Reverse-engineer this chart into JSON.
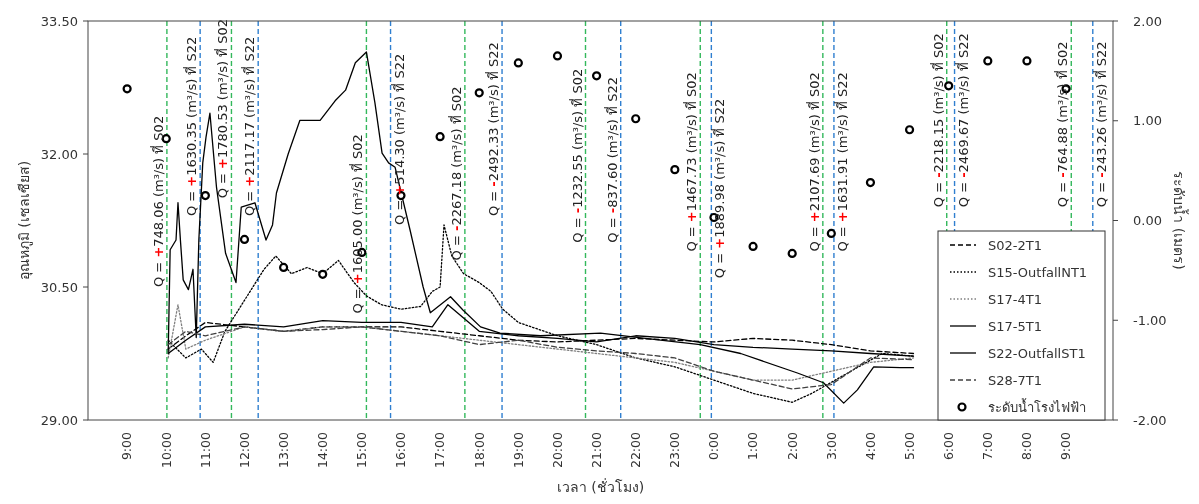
{
  "chart_data": {
    "type": "line",
    "xlabel": "เวลา (ชั่วโมง)",
    "ylabel": "อุณหภูมิ (เซลเซียส)",
    "y2label": "ระดับน้ำ (เมตร)",
    "xlim": [
      "2000-01-01T08:00",
      "2000-01-02T10:12"
    ],
    "xticks": [
      {
        "value": "2000-01-01T09:00",
        "label": "9:00"
      },
      {
        "value": "2000-01-01T10:00",
        "label": "10:00"
      },
      {
        "value": "2000-01-01T11:00",
        "label": "11:00"
      },
      {
        "value": "2000-01-01T12:00",
        "label": "12:00"
      },
      {
        "value": "2000-01-01T13:00",
        "label": "13:00"
      },
      {
        "value": "2000-01-01T14:00",
        "label": "14:00"
      },
      {
        "value": "2000-01-01T15:00",
        "label": "15:00"
      },
      {
        "value": "2000-01-01T16:00",
        "label": "16:00"
      },
      {
        "value": "2000-01-01T17:00",
        "label": "17:00"
      },
      {
        "value": "2000-01-01T18:00",
        "label": "18:00"
      },
      {
        "value": "2000-01-01T19:00",
        "label": "19:00"
      },
      {
        "value": "2000-01-01T20:00",
        "label": "20:00"
      },
      {
        "value": "2000-01-01T21:00",
        "label": "21:00"
      },
      {
        "value": "2000-01-01T22:00",
        "label": "22:00"
      },
      {
        "value": "2000-01-01T23:00",
        "label": "23:00"
      },
      {
        "value": "2000-01-02T00:00",
        "label": "0:00"
      },
      {
        "value": "2000-01-02T01:00",
        "label": "1:00"
      },
      {
        "value": "2000-01-02T02:00",
        "label": "2:00"
      },
      {
        "value": "2000-01-02T03:00",
        "label": "3:00"
      },
      {
        "value": "2000-01-02T04:00",
        "label": "4:00"
      },
      {
        "value": "2000-01-02T05:00",
        "label": "5:00"
      },
      {
        "value": "2000-01-02T06:00",
        "label": "6:00"
      },
      {
        "value": "2000-01-02T07:00",
        "label": "7:00"
      },
      {
        "value": "2000-01-02T08:00",
        "label": "8:00"
      },
      {
        "value": "2000-01-02T09:00",
        "label": "9:00"
      }
    ],
    "ylim": [
      29,
      33.5
    ],
    "yticks": [
      {
        "value": 29,
        "label": "29.00"
      },
      {
        "value": 30.5,
        "label": "30.50"
      },
      {
        "value": 32,
        "label": "32.00"
      },
      {
        "value": 33.5,
        "label": "33.50"
      }
    ],
    "y2lim": [
      -2,
      2
    ],
    "y2ticks": [
      {
        "value": -2,
        "label": "-2.00"
      },
      {
        "value": -1,
        "label": "-1.00"
      },
      {
        "value": 0,
        "label": "0.00"
      },
      {
        "value": 1,
        "label": "1.00"
      },
      {
        "value": 2,
        "label": "2.00"
      }
    ],
    "legend": "bottom right",
    "series": [
      {
        "name": "S02-2T1",
        "color": "#000000",
        "line_style": "dashed",
        "x": [
          "2000-01-01T10:03",
          "2000-01-01T10:30",
          "2000-01-01T11:00",
          "2000-01-01T12:00",
          "2000-01-01T13:00",
          "2000-01-01T14:00",
          "2000-01-01T15:00",
          "2000-01-01T16:00",
          "2000-01-01T17:00",
          "2000-01-01T18:00",
          "2000-01-01T19:00",
          "2000-01-01T20:00",
          "2000-01-01T21:00",
          "2000-01-01T22:00",
          "2000-01-01T23:00",
          "2000-01-02T00:00",
          "2000-01-02T01:00",
          "2000-01-02T02:00",
          "2000-01-02T03:00",
          "2000-01-02T04:00",
          "2000-01-02T05:06"
        ],
        "values": [
          29.8,
          29.95,
          30.1,
          30.05,
          30,
          30.05,
          30.05,
          30.05,
          30,
          29.95,
          29.9,
          29.88,
          29.9,
          29.92,
          29.9,
          29.88,
          29.92,
          29.9,
          29.85,
          29.78,
          29.75
        ]
      },
      {
        "name": "S15-OutfallNT1",
        "color": "#000000",
        "line_style": "dotted",
        "x": [
          "2000-01-01T10:03",
          "2000-01-01T10:30",
          "2000-01-01T10:54",
          "2000-01-01T11:12",
          "2000-01-01T11:30",
          "2000-01-01T12:00",
          "2000-01-01T12:30",
          "2000-01-01T12:48",
          "2000-01-01T13:12",
          "2000-01-01T13:36",
          "2000-01-01T14:00",
          "2000-01-01T14:24",
          "2000-01-01T14:48",
          "2000-01-01T15:07",
          "2000-01-01T15:30",
          "2000-01-01T16:00",
          "2000-01-01T16:30",
          "2000-01-01T16:48",
          "2000-01-01T17:00",
          "2000-01-01T17:06",
          "2000-01-01T17:18",
          "2000-01-01T17:36",
          "2000-01-01T18:00",
          "2000-01-01T18:18",
          "2000-01-01T18:36",
          "2000-01-01T19:00",
          "2000-01-01T20:00",
          "2000-01-01T21:00",
          "2000-01-01T22:00",
          "2000-01-01T23:00",
          "2000-01-02T00:00",
          "2000-01-02T01:00",
          "2000-01-02T02:00",
          "2000-01-02T02:30",
          "2000-01-02T03:30",
          "2000-01-02T04:18",
          "2000-01-02T05:06"
        ],
        "values": [
          29.9,
          29.7,
          29.8,
          29.65,
          30,
          30.35,
          30.7,
          30.85,
          30.65,
          30.72,
          30.65,
          30.8,
          30.55,
          30.4,
          30.3,
          30.25,
          30.28,
          30.45,
          30.5,
          31.2,
          30.85,
          30.65,
          30.55,
          30.45,
          30.25,
          30.1,
          29.95,
          29.85,
          29.7,
          29.6,
          29.45,
          29.3,
          29.2,
          29.3,
          29.55,
          29.75,
          29.72
        ]
      },
      {
        "name": "S17-4T1",
        "color": "#808080",
        "line_style": "dotted",
        "x": [
          "2000-01-01T10:03",
          "2000-01-01T10:18",
          "2000-01-01T10:30",
          "2000-01-01T11:00",
          "2000-01-01T12:00",
          "2000-01-01T13:00",
          "2000-01-01T14:00",
          "2000-01-01T15:00",
          "2000-01-01T16:00",
          "2000-01-01T17:00",
          "2000-01-01T18:00",
          "2000-01-01T19:00",
          "2000-01-01T20:00",
          "2000-01-01T21:00",
          "2000-01-01T22:00",
          "2000-01-01T23:00",
          "2000-01-02T00:00",
          "2000-01-02T01:00",
          "2000-01-02T02:00",
          "2000-01-02T03:00",
          "2000-01-02T04:00",
          "2000-01-02T05:06"
        ],
        "values": [
          29.7,
          30.3,
          29.8,
          29.9,
          30.05,
          30,
          30.05,
          30.05,
          30,
          29.95,
          29.9,
          29.85,
          29.8,
          29.75,
          29.7,
          29.65,
          29.55,
          29.45,
          29.45,
          29.55,
          29.65,
          29.7
        ]
      },
      {
        "name": "S17-5T1",
        "color": "#000000",
        "line_style": "solid",
        "x": [
          "2000-01-01T10:03",
          "2000-01-01T10:30",
          "2000-01-01T11:00",
          "2000-01-01T12:00",
          "2000-01-01T13:00",
          "2000-01-01T14:00",
          "2000-01-01T15:00",
          "2000-01-01T16:00",
          "2000-01-01T16:48",
          "2000-01-01T17:12",
          "2000-01-01T17:36",
          "2000-01-01T18:00",
          "2000-01-01T19:00",
          "2000-01-01T20:00",
          "2000-01-01T21:00",
          "2000-01-01T22:00",
          "2000-01-01T23:00",
          "2000-01-02T00:00",
          "2000-01-02T01:00",
          "2000-01-02T02:00",
          "2000-01-02T03:00",
          "2000-01-02T04:00",
          "2000-01-02T05:06"
        ],
        "values": [
          29.75,
          29.9,
          30.05,
          30.08,
          30.05,
          30.12,
          30.1,
          30.1,
          30.05,
          30.3,
          30.15,
          30,
          29.95,
          29.92,
          29.88,
          29.95,
          29.92,
          29.85,
          29.82,
          29.8,
          29.78,
          29.75,
          29.72
        ]
      },
      {
        "name": "S22-OutfallST1",
        "color": "#000000",
        "line_style": "solid",
        "x": [
          "2000-01-01T10:03",
          "2000-01-01T10:06",
          "2000-01-01T10:15",
          "2000-01-01T10:18",
          "2000-01-01T10:22",
          "2000-01-01T10:26",
          "2000-01-01T10:34",
          "2000-01-01T10:41",
          "2000-01-01T10:46",
          "2000-01-01T10:50",
          "2000-01-01T10:56",
          "2000-01-01T11:01",
          "2000-01-01T11:07",
          "2000-01-01T11:17",
          "2000-01-01T11:31",
          "2000-01-01T11:47",
          "2000-01-01T11:55",
          "2000-01-01T12:16",
          "2000-01-01T12:33",
          "2000-01-01T12:43",
          "2000-01-01T12:49",
          "2000-01-01T13:07",
          "2000-01-01T13:25",
          "2000-01-01T13:56",
          "2000-01-01T14:19",
          "2000-01-01T14:35",
          "2000-01-01T14:50",
          "2000-01-01T15:07",
          "2000-01-01T15:20",
          "2000-01-01T15:31",
          "2000-01-01T15:41",
          "2000-01-01T15:51",
          "2000-01-01T16:14",
          "2000-01-01T16:34",
          "2000-01-01T16:45",
          "2000-01-01T17:16",
          "2000-01-01T17:35",
          "2000-01-01T18:02",
          "2000-01-01T18:32",
          "2000-01-01T19:34",
          "2000-01-01T21:06",
          "2000-01-01T22:38",
          "2000-01-01T23:39",
          "2000-01-02T00:41",
          "2000-01-02T02:08",
          "2000-01-02T02:48",
          "2000-01-02T03:19",
          "2000-01-02T03:40",
          "2000-01-02T04:05",
          "2000-01-02T04:46",
          "2000-01-02T05:06"
        ],
        "values": [
          29.76,
          30.92,
          31.03,
          31.45,
          31,
          30.58,
          30.47,
          30.7,
          29.93,
          31.03,
          31.9,
          32.19,
          32.46,
          31.63,
          30.88,
          30.55,
          31.4,
          31.45,
          31.03,
          31.2,
          31.56,
          32,
          32.38,
          32.38,
          32.6,
          32.72,
          33.03,
          33.15,
          32.58,
          32.01,
          31.9,
          31.85,
          31.14,
          30.5,
          30.21,
          30.39,
          30.24,
          30.05,
          29.98,
          29.95,
          29.98,
          29.9,
          29.85,
          29.75,
          29.53,
          29.42,
          29.19,
          29.34,
          29.6,
          29.59,
          29.59
        ]
      },
      {
        "name": "S28-7T1",
        "color": "#404040",
        "line_style": "dashed",
        "x": [
          "2000-01-01T10:03",
          "2000-01-01T10:30",
          "2000-01-01T11:00",
          "2000-01-01T12:00",
          "2000-01-01T13:00",
          "2000-01-01T14:00",
          "2000-01-01T15:00",
          "2000-01-01T16:00",
          "2000-01-01T17:00",
          "2000-01-01T18:00",
          "2000-01-01T19:00",
          "2000-01-01T20:00",
          "2000-01-01T21:00",
          "2000-01-01T22:00",
          "2000-01-01T23:00",
          "2000-01-02T00:00",
          "2000-01-02T01:00",
          "2000-01-02T02:00",
          "2000-01-02T03:00",
          "2000-01-02T04:00",
          "2000-01-02T05:06"
        ],
        "values": [
          29.85,
          30,
          29.95,
          30.05,
          30,
          30.02,
          30.05,
          30,
          29.95,
          29.85,
          29.9,
          29.82,
          29.78,
          29.75,
          29.7,
          29.55,
          29.45,
          29.35,
          29.4,
          29.7,
          29.68
        ]
      },
      {
        "name": "ระดับน้ำโรงไฟฟ้า",
        "type": "scatter",
        "axis": "y2",
        "marker": "circle",
        "color": "#000000",
        "x": [
          "2000-01-01T09:00",
          "2000-01-01T10:00",
          "2000-01-01T11:00",
          "2000-01-01T12:00",
          "2000-01-01T13:00",
          "2000-01-01T14:00",
          "2000-01-01T15:00",
          "2000-01-01T16:00",
          "2000-01-01T17:00",
          "2000-01-01T18:00",
          "2000-01-01T19:00",
          "2000-01-01T20:00",
          "2000-01-01T21:00",
          "2000-01-01T22:00",
          "2000-01-01T23:00",
          "2000-01-02T00:00",
          "2000-01-02T01:00",
          "2000-01-02T02:00",
          "2000-01-02T03:00",
          "2000-01-02T04:00",
          "2000-01-02T05:00",
          "2000-01-02T06:00",
          "2000-01-02T07:00",
          "2000-01-02T08:00",
          "2000-01-02T09:00"
        ],
        "values": [
          1.32,
          0.82,
          0.25,
          -0.19,
          -0.47,
          -0.54,
          -0.32,
          0.25,
          0.84,
          1.28,
          1.58,
          1.65,
          1.45,
          1.02,
          0.51,
          0.03,
          -0.26,
          -0.33,
          -0.13,
          0.38,
          0.91,
          1.35,
          1.6,
          1.6,
          1.32
        ]
      }
    ],
    "ref_lines": [
      {
        "axis": "x",
        "value": "2000-01-01T10:01",
        "color": "#33b85c",
        "line_style": "dashed"
      },
      {
        "axis": "x",
        "value": "2000-01-01T10:52",
        "color": "#2f7fd0",
        "line_style": "dashed"
      },
      {
        "axis": "x",
        "value": "2000-01-01T11:40",
        "color": "#33b85c",
        "line_style": "dashed"
      },
      {
        "axis": "x",
        "value": "2000-01-01T12:21",
        "color": "#2f7fd0",
        "line_style": "dashed"
      },
      {
        "axis": "x",
        "value": "2000-01-01T15:07",
        "color": "#33b85c",
        "line_style": "dashed"
      },
      {
        "axis": "x",
        "value": "2000-01-01T15:44",
        "color": "#2f7fd0",
        "line_style": "dashed"
      },
      {
        "axis": "x",
        "value": "2000-01-01T17:38",
        "color": "#33b85c",
        "line_style": "dashed"
      },
      {
        "axis": "x",
        "value": "2000-01-01T18:35",
        "color": "#2f7fd0",
        "line_style": "dashed"
      },
      {
        "axis": "x",
        "value": "2000-01-01T20:43",
        "color": "#33b85c",
        "line_style": "dashed"
      },
      {
        "axis": "x",
        "value": "2000-01-01T21:37",
        "color": "#2f7fd0",
        "line_style": "dashed"
      },
      {
        "axis": "x",
        "value": "2000-01-01T23:39",
        "color": "#33b85c",
        "line_style": "dashed"
      },
      {
        "axis": "x",
        "value": "2000-01-01T23:56",
        "color": "#2f7fd0",
        "line_style": "dashed"
      },
      {
        "axis": "x",
        "value": "2000-01-02T02:47",
        "color": "#33b85c",
        "line_style": "dashed"
      },
      {
        "axis": "x",
        "value": "2000-01-02T03:04",
        "color": "#2f7fd0",
        "line_style": "dashed"
      },
      {
        "axis": "x",
        "value": "2000-01-02T05:57",
        "color": "#33b85c",
        "line_style": "dashed"
      },
      {
        "axis": "x",
        "value": "2000-01-02T06:09",
        "color": "#2f7fd0",
        "line_style": "dashed"
      },
      {
        "axis": "x",
        "value": "2000-01-02T09:08",
        "color": "#33b85c",
        "line_style": "dashed"
      },
      {
        "axis": "x",
        "value": "2000-01-02T09:41",
        "color": "#2f7fd0",
        "line_style": "dashed"
      }
    ],
    "annotations": [
      {
        "text": "Q = +748.06 (m³/s) ที่ S02",
        "x": "2000-01-01T10:01",
        "y": 30.5
      },
      {
        "text": "Q = +1630.35 (m³/s) ที่ S22",
        "x": "2000-01-01T10:52",
        "y": 31.3
      },
      {
        "text": "Q = +1780.53 (m³/s) ที่ S02",
        "x": "2000-01-01T11:40",
        "y": 31.5
      },
      {
        "text": "Q = +2117.17 (m³/s) ที่ S22",
        "x": "2000-01-01T12:21",
        "y": 31.3
      },
      {
        "text": "Q = +1605.00 (m³/s) ที่ S02",
        "x": "2000-01-01T15:07",
        "y": 30.2
      },
      {
        "text": "Q = +514.30 (m³/s) ที่ S22",
        "x": "2000-01-01T15:44",
        "y": 31.2
      },
      {
        "text": "Q = -2267.18 (m³/s) ที่ S02",
        "x": "2000-01-01T17:38",
        "y": 30.8
      },
      {
        "text": "Q = -2492.33 (m³/s) ที่ S22",
        "x": "2000-01-01T18:35",
        "y": 31.3
      },
      {
        "text": "Q = -1232.55 (m³/s) ที่ S02",
        "x": "2000-01-01T20:43",
        "y": 31.0
      },
      {
        "text": "Q = -837.60 (m³/s) ที่ S22",
        "x": "2000-01-01T21:37",
        "y": 31.0
      },
      {
        "text": "Q = +1467.73 (m³/s) ที่ S02",
        "x": "2000-01-01T23:39",
        "y": 30.9
      },
      {
        "text": "Q = +1889.98 (m³/s) ที่ S22",
        "x": "2000-01-01T23:56",
        "y": 30.6
      },
      {
        "text": "Q = +2107.69 (m³/s) ที่ S02",
        "x": "2000-01-02T02:47",
        "y": 30.9
      },
      {
        "text": "Q = +1631.91 (m³/s) ที่ S22",
        "x": "2000-01-02T03:04",
        "y": 30.9
      },
      {
        "text": "Q = -2218.15 (m³/s) ที่ S02",
        "x": "2000-01-02T05:57",
        "y": 31.4
      },
      {
        "text": "Q = -2469.67 (m³/s) ที่ S22",
        "x": "2000-01-02T06:09",
        "y": 31.4
      },
      {
        "text": "Q = -764.88 (m³/s) ที่ S02",
        "x": "2000-01-02T09:08",
        "y": 31.4
      },
      {
        "text": "Q = -243.26 (m³/s) ที่ S22",
        "x": "2000-01-02T09:41",
        "y": 31.4
      }
    ]
  }
}
